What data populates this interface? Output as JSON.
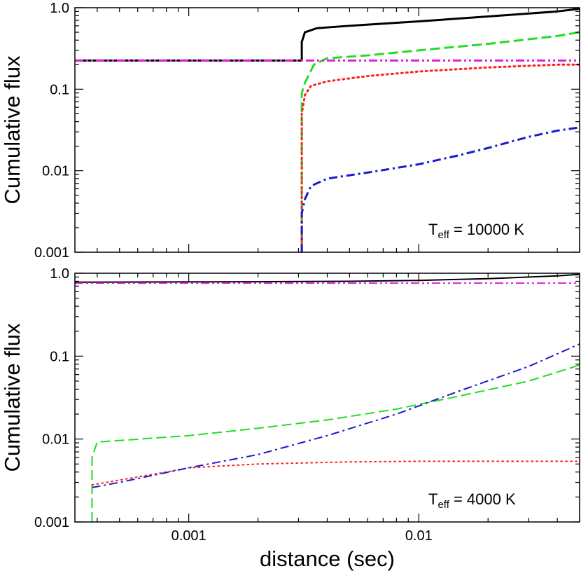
{
  "chart_data": [
    {
      "type": "line",
      "ylabel": "Cumulative flux",
      "xlabel": "",
      "annotation": {
        "prefix": "T",
        "sub": "eff",
        "text": " = 10000 K"
      },
      "xscale": "log",
      "yscale": "log",
      "xlim": [
        0.00032,
        0.05
      ],
      "ylim": [
        0.001,
        1.0
      ],
      "xticks": [
        0.001,
        0.01
      ],
      "xtick_labels": [
        "",
        ""
      ],
      "yticks": [
        0.001,
        0.01,
        0.1,
        1.0
      ],
      "ytick_labels": [
        "0.001",
        "0.01",
        "0.1",
        "1.0"
      ],
      "series": [
        {
          "color": "#000000",
          "style": "solid",
          "width": 3,
          "x": [
            0.00032,
            0.0031,
            0.0031,
            0.0032,
            0.0036,
            0.005,
            0.01,
            0.02,
            0.04,
            0.05
          ],
          "y": [
            0.225,
            0.225,
            0.38,
            0.5,
            0.56,
            0.6,
            0.68,
            0.78,
            0.9,
            0.97
          ]
        },
        {
          "color": "#22dd22",
          "style": "dashed",
          "width": 3,
          "x": [
            0.0031,
            0.0031,
            0.0032,
            0.0035,
            0.004,
            0.006,
            0.01,
            0.02,
            0.04,
            0.05
          ],
          "y": [
            0.001,
            0.09,
            0.12,
            0.2,
            0.24,
            0.26,
            0.3,
            0.36,
            0.45,
            0.5
          ]
        },
        {
          "color": "#ff2020",
          "style": "dotted",
          "width": 3,
          "x": [
            0.0031,
            0.0031,
            0.0032,
            0.0034,
            0.004,
            0.006,
            0.01,
            0.02,
            0.04,
            0.05
          ],
          "y": [
            0.001,
            0.05,
            0.085,
            0.11,
            0.125,
            0.145,
            0.165,
            0.185,
            0.2,
            0.2
          ]
        },
        {
          "color": "#1a1acc",
          "style": "dashdot",
          "width": 3,
          "x": [
            0.0031,
            0.0031,
            0.0032,
            0.0034,
            0.004,
            0.006,
            0.01,
            0.015,
            0.02,
            0.03,
            0.04,
            0.05
          ],
          "y": [
            0.001,
            0.003,
            0.0045,
            0.0065,
            0.008,
            0.0095,
            0.012,
            0.0155,
            0.019,
            0.026,
            0.031,
            0.034
          ]
        },
        {
          "color": "#dd22dd",
          "style": "dashdotdot",
          "width": 3,
          "x": [
            0.00032,
            0.05
          ],
          "y": [
            0.225,
            0.225
          ]
        }
      ]
    },
    {
      "type": "line",
      "ylabel": "Cumulative flux",
      "xlabel": "distance (sec)",
      "annotation": {
        "prefix": "T",
        "sub": "eff",
        "text": " = 4000 K"
      },
      "xscale": "log",
      "yscale": "log",
      "xlim": [
        0.00032,
        0.05
      ],
      "ylim": [
        0.001,
        1.0
      ],
      "xticks": [
        0.001,
        0.01
      ],
      "xtick_labels": [
        "0.001",
        "0.01"
      ],
      "yticks": [
        0.001,
        0.01,
        0.1,
        1.0
      ],
      "ytick_labels": [
        "0.001",
        "0.01",
        "0.1",
        "1.0"
      ],
      "series": [
        {
          "color": "#000000",
          "style": "solid",
          "width": 2,
          "x": [
            0.00032,
            0.002,
            0.005,
            0.01,
            0.02,
            0.04,
            0.05
          ],
          "y": [
            0.78,
            0.79,
            0.8,
            0.82,
            0.86,
            0.93,
            0.97
          ]
        },
        {
          "color": "#22dd22",
          "style": "dashed",
          "width": 2,
          "x": [
            0.00038,
            0.00038,
            0.0004,
            0.001,
            0.002,
            0.004,
            0.008,
            0.015,
            0.03,
            0.05
          ],
          "y": [
            0.001,
            0.006,
            0.0092,
            0.011,
            0.0135,
            0.017,
            0.023,
            0.033,
            0.05,
            0.078
          ]
        },
        {
          "color": "#ff2020",
          "style": "dotted",
          "width": 2,
          "x": [
            0.00038,
            0.0005,
            0.0008,
            0.001,
            0.002,
            0.005,
            0.01,
            0.05
          ],
          "y": [
            0.0028,
            0.0032,
            0.004,
            0.0045,
            0.005,
            0.0053,
            0.0054,
            0.0054
          ]
        },
        {
          "color": "#1a1acc",
          "style": "dashdot",
          "width": 2,
          "x": [
            0.00038,
            0.0005,
            0.001,
            0.002,
            0.004,
            0.008,
            0.015,
            0.03,
            0.05
          ],
          "y": [
            0.0026,
            0.003,
            0.0045,
            0.0065,
            0.011,
            0.02,
            0.038,
            0.075,
            0.14
          ]
        },
        {
          "color": "#dd22dd",
          "style": "dashdotdot",
          "width": 2,
          "x": [
            0.00032,
            0.05
          ],
          "y": [
            0.76,
            0.76
          ]
        }
      ]
    }
  ]
}
